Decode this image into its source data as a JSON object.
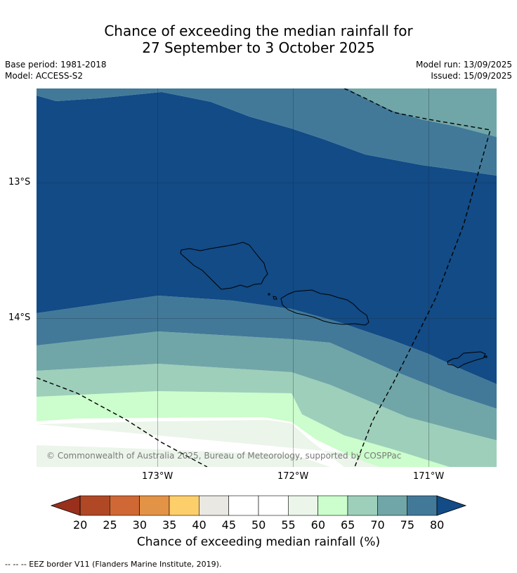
{
  "header": {
    "title_line1": "Chance of exceeding the median rainfall for",
    "title_line2": "27 September to 3 October 2025",
    "base_period": "Base period: 1981-2018",
    "model": "Model: ACCESS-S2",
    "model_run": "Model run: 13/09/2025",
    "issued": "Issued: 15/09/2025"
  },
  "map": {
    "lat_labels": [
      "13°S",
      "14°S"
    ],
    "lon_labels": [
      "173°W",
      "172°W",
      "171°W"
    ],
    "copyright": "© Commonwealth of Australia 2025, Bureau of Meteorology, supported by COSPPac",
    "band_colors": [
      "#124b86",
      "#427998",
      "#70a6a7",
      "#9ecfba",
      "#ccfdcc",
      "#ebf5ea",
      "#ffffff"
    ]
  },
  "colorbar": {
    "ticks": [
      "20",
      "25",
      "30",
      "35",
      "40",
      "45",
      "50",
      "55",
      "60",
      "65",
      "70",
      "75",
      "80"
    ],
    "colors": [
      "#b04825",
      "#cf6834",
      "#e39345",
      "#fdcf6b",
      "#eae8e3",
      "#ffffff",
      "#ffffff",
      "#ebf5ea",
      "#ccfdcc",
      "#9ecfba",
      "#70a6a7",
      "#427998"
    ],
    "under_color": "#98301c",
    "over_color": "#124b86",
    "label": "Chance of exceeding median rainfall (%)"
  },
  "footer": {
    "eez_note": "--  --  -- EEZ border V11 (Flanders Marine Institute, 2019)."
  }
}
